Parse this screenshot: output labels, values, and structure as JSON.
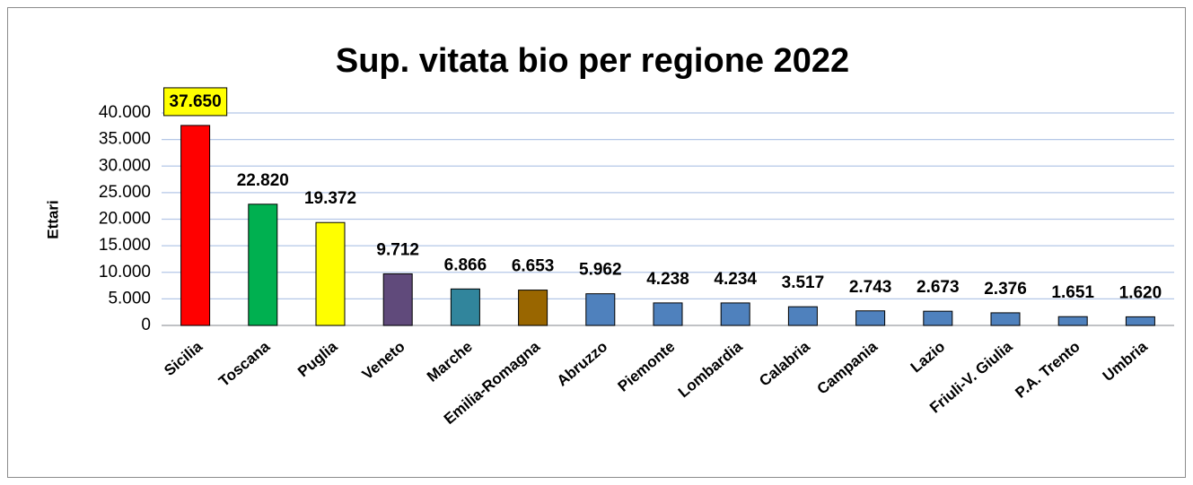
{
  "chart_data": {
    "type": "bar",
    "title": "Sup. vitata bio per regione 2022",
    "y_label": "Ettari",
    "categories": [
      "Sicilia",
      "Toscana",
      "Puglia",
      "Veneto",
      "Marche",
      "Emilia-Romagna",
      "Abruzzo",
      "Piemonte",
      "Lombardia",
      "Calabria",
      "Campania",
      "Lazio",
      "Friuli-V. Giulia",
      "P.A. Trento",
      "Umbria"
    ],
    "values": [
      37650,
      22820,
      19372,
      9712,
      6866,
      6653,
      5962,
      4238,
      4234,
      3517,
      2743,
      2673,
      2376,
      1651,
      1620
    ],
    "value_labels": [
      "37.650",
      "22.820",
      "19.372",
      "9.712",
      "6.866",
      "6.653",
      "5.962",
      "4.238",
      "4.234",
      "3.517",
      "2.743",
      "2.673",
      "2.376",
      "1.651",
      "1.620"
    ],
    "colors": [
      "#ff0000",
      "#00b050",
      "#ffff00",
      "#604a7b",
      "#31859c",
      "#996600",
      "#4f81bd",
      "#4f81bd",
      "#4f81bd",
      "#4f81bd",
      "#4f81bd",
      "#4f81bd",
      "#4f81bd",
      "#4f81bd",
      "#4f81bd"
    ],
    "ylim": [
      0,
      40000
    ],
    "yticks": [
      0,
      {
        "value": 5000,
        "label": "5.000"
      },
      {
        "value": 10000,
        "label": "10.000"
      },
      {
        "value": 15000,
        "label": "15.000"
      },
      {
        "value": 20000,
        "label": "20.000"
      },
      {
        "value": 25000,
        "label": "25.000"
      },
      {
        "value": 30000,
        "label": "30.000"
      },
      {
        "value": 35000,
        "label": "35.000"
      },
      {
        "value": 40000,
        "label": "40.000"
      }
    ],
    "grid": true
  }
}
